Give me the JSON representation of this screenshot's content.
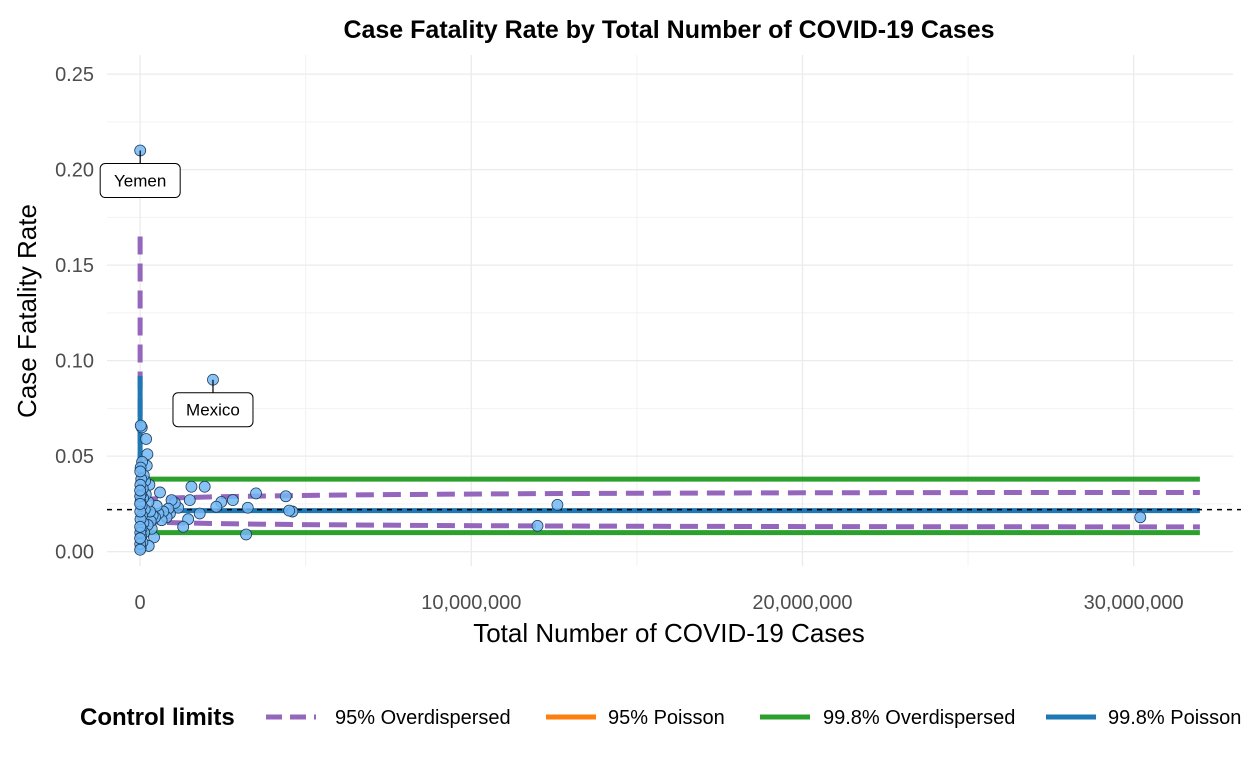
{
  "chart_data": {
    "type": "scatter",
    "title": "Case Fatality Rate by Total Number of COVID-19 Cases",
    "xlabel": "Total Number of COVID-19 Cases",
    "ylabel": "Case Fatality Rate",
    "xlim": [
      -1000000,
      33000000
    ],
    "ylim": [
      -0.0075,
      0.26
    ],
    "x_ticks": [
      0,
      10000000,
      20000000,
      30000000
    ],
    "x_tick_labels": [
      "0",
      "10,000,000",
      "20,000,000",
      "30,000,000"
    ],
    "y_ticks": [
      0.0,
      0.05,
      0.1,
      0.15,
      0.2,
      0.25
    ],
    "y_tick_labels": [
      "0.00",
      "0.05",
      "0.10",
      "0.15",
      "0.20",
      "0.25"
    ],
    "grid": true,
    "legend": {
      "title": "Control limits",
      "position": "bottom",
      "entries": [
        {
          "label": "95% Overdispersed",
          "color": "#9467bd",
          "style": "dashed"
        },
        {
          "label": "95% Poisson",
          "color": "#ff7f0e",
          "style": "solid"
        },
        {
          "label": "99.8% Overdispersed",
          "color": "#2ca02c",
          "style": "solid"
        },
        {
          "label": "99.8% Poisson",
          "color": "#1f77b4",
          "style": "solid"
        }
      ]
    },
    "average_rate": 0.022,
    "control_limits": {
      "overdispersed_95": {
        "upper": 0.031,
        "lower": 0.013,
        "funnel_top": 0.165
      },
      "overdispersed_998": {
        "upper": 0.038,
        "lower": 0.01
      },
      "poisson_998": {
        "upper": 0.0215,
        "lower": 0.0215,
        "funnel_top": 0.092
      },
      "x_max": 32000000
    },
    "point_color": "#74b9f5",
    "annotations": [
      {
        "label": "Yemen",
        "x": 2100,
        "y": 0.21
      },
      {
        "label": "Mexico",
        "x": 2200000,
        "y": 0.09
      }
    ],
    "points": [
      [
        2100,
        0.21
      ],
      [
        2200000,
        0.09
      ],
      [
        30200000,
        0.018
      ],
      [
        12600000,
        0.0245
      ],
      [
        12000000,
        0.0135
      ],
      [
        4600000,
        0.021
      ],
      [
        4400000,
        0.029
      ],
      [
        4500000,
        0.0215
      ],
      [
        3500000,
        0.0305
      ],
      [
        3250000,
        0.023
      ],
      [
        3200000,
        0.009
      ],
      [
        2800000,
        0.027
      ],
      [
        2450000,
        0.026
      ],
      [
        2300000,
        0.0235
      ],
      [
        1950000,
        0.034
      ],
      [
        1800000,
        0.02
      ],
      [
        1550000,
        0.034
      ],
      [
        1500000,
        0.027
      ],
      [
        1450000,
        0.017
      ],
      [
        1300000,
        0.013
      ],
      [
        1150000,
        0.023
      ],
      [
        1050000,
        0.0255
      ],
      [
        950000,
        0.027
      ],
      [
        900000,
        0.02
      ],
      [
        850000,
        0.0225
      ],
      [
        800000,
        0.018
      ],
      [
        700000,
        0.021
      ],
      [
        650000,
        0.0165
      ],
      [
        600000,
        0.031
      ],
      [
        550000,
        0.02
      ],
      [
        500000,
        0.024
      ],
      [
        450000,
        0.018
      ],
      [
        420000,
        0.0075
      ],
      [
        380000,
        0.019
      ],
      [
        350000,
        0.012
      ],
      [
        320000,
        0.016
      ],
      [
        300000,
        0.021
      ],
      [
        280000,
        0.035
      ],
      [
        260000,
        0.003
      ],
      [
        250000,
        0.026
      ],
      [
        230000,
        0.014
      ],
      [
        220000,
        0.051
      ],
      [
        200000,
        0.045
      ],
      [
        180000,
        0.059
      ],
      [
        170000,
        0.03
      ],
      [
        150000,
        0.037
      ],
      [
        140000,
        0.022
      ],
      [
        120000,
        0.01
      ],
      [
        110000,
        0.04
      ],
      [
        100000,
        0.015
      ],
      [
        90000,
        0.028
      ],
      [
        80000,
        0.033
      ],
      [
        70000,
        0.005
      ],
      [
        60000,
        0.047
      ],
      [
        55000,
        0.019
      ],
      [
        50000,
        0.065
      ],
      [
        45000,
        0.024
      ],
      [
        40000,
        0.012
      ],
      [
        35000,
        0.038
      ],
      [
        30000,
        0.008
      ],
      [
        25000,
        0.03
      ],
      [
        20000,
        0.066
      ],
      [
        18000,
        0.002
      ],
      [
        15000,
        0.044
      ],
      [
        12000,
        0.017
      ],
      [
        10000,
        0.026
      ],
      [
        8000,
        0.035
      ],
      [
        6000,
        0.01
      ],
      [
        5000,
        0.042
      ],
      [
        4000,
        0.021
      ],
      [
        3000,
        0.004
      ],
      [
        2500,
        0.029
      ],
      [
        1500,
        0.013
      ],
      [
        1000,
        0.001
      ],
      [
        500,
        0.032
      ],
      [
        200,
        0.007
      ],
      [
        100,
        0.025
      ]
    ]
  }
}
